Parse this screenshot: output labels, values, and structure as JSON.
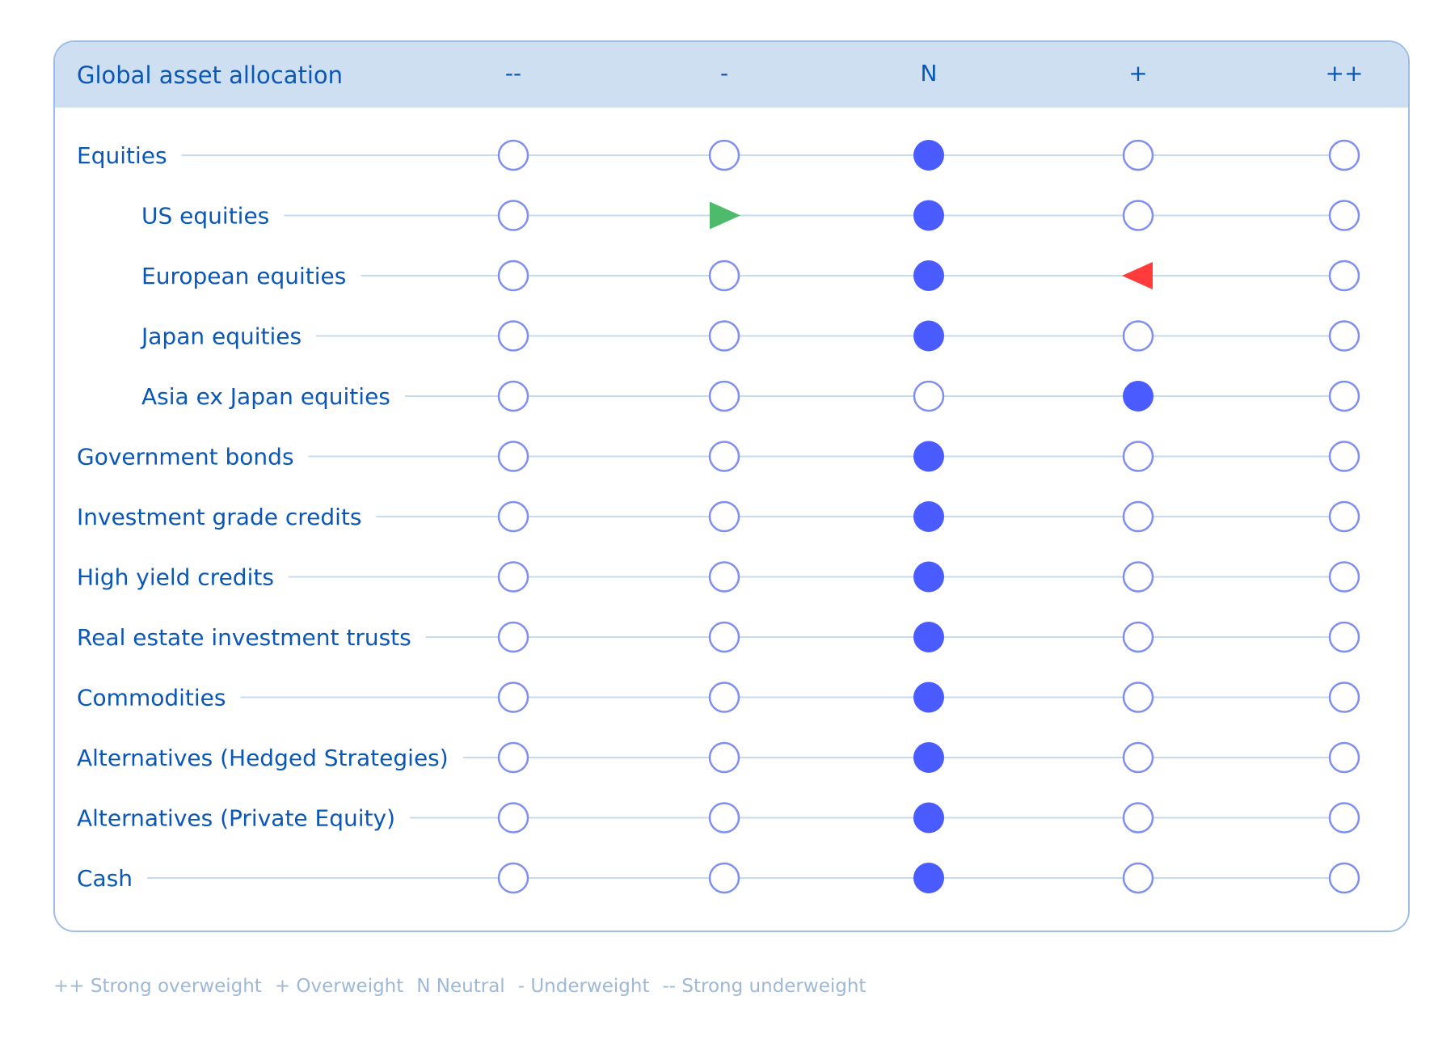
{
  "chart_data": {
    "type": "table",
    "title": "Global asset allocation",
    "columns": [
      "--",
      "-",
      "N",
      "+",
      "++"
    ],
    "rows": [
      {
        "label": "Equities",
        "indent": false,
        "position": "N",
        "marker": "dot"
      },
      {
        "label": "US equities",
        "indent": true,
        "position": "N",
        "marker": "dot",
        "change_from": "-",
        "change_direction": "up"
      },
      {
        "label": "European equities",
        "indent": true,
        "position": "N",
        "marker": "dot",
        "change_from": "+",
        "change_direction": "down"
      },
      {
        "label": "Japan equities",
        "indent": true,
        "position": "N",
        "marker": "dot"
      },
      {
        "label": "Asia ex Japan equities",
        "indent": true,
        "position": "+",
        "marker": "dot"
      },
      {
        "label": "Government bonds",
        "indent": false,
        "position": "N",
        "marker": "dot"
      },
      {
        "label": "Investment grade credits",
        "indent": false,
        "position": "N",
        "marker": "dot"
      },
      {
        "label": "High yield credits",
        "indent": false,
        "position": "N",
        "marker": "dot"
      },
      {
        "label": "Real estate investment trusts",
        "indent": false,
        "position": "N",
        "marker": "dot"
      },
      {
        "label": "Commodities",
        "indent": false,
        "position": "N",
        "marker": "dot"
      },
      {
        "label": "Alternatives (Hedged Strategies)",
        "indent": false,
        "position": "N",
        "marker": "dot"
      },
      {
        "label": "Alternatives (Private Equity)",
        "indent": false,
        "position": "N",
        "marker": "dot"
      },
      {
        "label": "Cash",
        "indent": false,
        "position": "N",
        "marker": "dot"
      }
    ],
    "legend": [
      "++ Strong overweight",
      "+ Overweight",
      "N Neutral",
      "- Underweight",
      "-- Strong underweight"
    ]
  },
  "colors": {
    "text": "#0a57b8",
    "header_bg": "#cfdff2",
    "border": "#9dbde6",
    "line": "#c7dbf0",
    "open_circle": "#7f8ff0",
    "filled_circle": "#4a5cff",
    "up_arrow": "#4dbb6b",
    "down_arrow": "#ff3b3b",
    "legend_text": "#9fb8d6"
  }
}
